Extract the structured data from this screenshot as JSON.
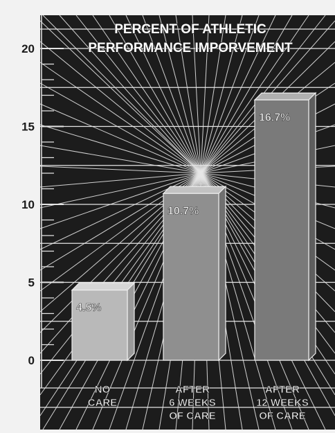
{
  "chart_data": {
    "type": "bar",
    "title_lines": [
      "PERCENT OF ATHLETIC",
      "PERFORMANCE IMPORVEMENT"
    ],
    "categories": [
      [
        "NO",
        "CARE"
      ],
      [
        "AFTER",
        "6 WEEKS",
        "OF CARE"
      ],
      [
        "AFTER",
        "12 WEEKS",
        "OF CARE"
      ]
    ],
    "values": [
      4.5,
      10.7,
      16.7
    ],
    "value_labels": [
      "4.5%",
      "10.7%",
      "16.7%"
    ],
    "y_ticks": [
      "0",
      "5",
      "10",
      "15",
      "20"
    ],
    "ylim": [
      0,
      20
    ],
    "grid": true
  },
  "colors": {
    "page": "#f2f2f2",
    "panel": "#1c1c1c",
    "grid": "#e6e6e6",
    "tick_text": "#1a1a1a",
    "bar_fill": [
      "#b9b9b9",
      "#8f8f8f",
      "#7a7a7a"
    ],
    "bar_top": [
      "#d6d6d6",
      "#c2c2c2",
      "#b0b0b0"
    ],
    "bar_side": [
      "#9a9a9a",
      "#707070",
      "#5e5e5e"
    ]
  }
}
